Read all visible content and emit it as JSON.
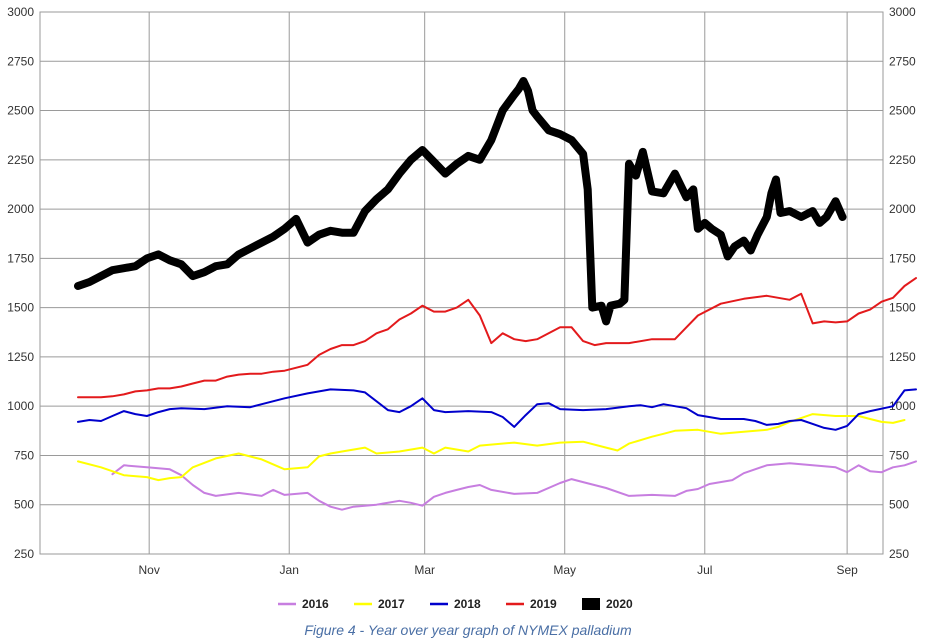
{
  "chart_data": {
    "type": "line",
    "title": "",
    "xlabel": "",
    "ylabel": "",
    "ylim": [
      250,
      3000
    ],
    "y_ticks": [
      250,
      500,
      750,
      1000,
      1250,
      1500,
      1750,
      2000,
      2250,
      2500,
      2750,
      3000
    ],
    "x_ticks": [
      {
        "label": "Nov",
        "day": 31
      },
      {
        "label": "Jan",
        "day": 92
      },
      {
        "label": "Mar",
        "day": 151
      },
      {
        "label": "May",
        "day": 212
      },
      {
        "label": "Jul",
        "day": 273
      },
      {
        "label": "Sep",
        "day": 335
      }
    ],
    "x_range_days": [
      0,
      365
    ],
    "grid": true,
    "legend_placement": "bottom",
    "series": [
      {
        "name": "2016",
        "color": "#c77ee0",
        "width": 2,
        "points": [
          [
            15,
            655
          ],
          [
            20,
            700
          ],
          [
            30,
            690
          ],
          [
            40,
            680
          ],
          [
            45,
            650
          ],
          [
            50,
            600
          ],
          [
            55,
            560
          ],
          [
            60,
            545
          ],
          [
            70,
            560
          ],
          [
            80,
            545
          ],
          [
            85,
            575
          ],
          [
            90,
            550
          ],
          [
            100,
            560
          ],
          [
            105,
            520
          ],
          [
            110,
            490
          ],
          [
            115,
            475
          ],
          [
            120,
            490
          ],
          [
            130,
            500
          ],
          [
            140,
            520
          ],
          [
            145,
            510
          ],
          [
            150,
            495
          ],
          [
            155,
            540
          ],
          [
            160,
            560
          ],
          [
            165,
            575
          ],
          [
            170,
            590
          ],
          [
            175,
            600
          ],
          [
            180,
            575
          ],
          [
            190,
            555
          ],
          [
            200,
            560
          ],
          [
            210,
            610
          ],
          [
            215,
            630
          ],
          [
            220,
            615
          ],
          [
            230,
            585
          ],
          [
            240,
            545
          ],
          [
            250,
            550
          ],
          [
            260,
            545
          ],
          [
            265,
            570
          ],
          [
            270,
            580
          ],
          [
            275,
            605
          ],
          [
            285,
            625
          ],
          [
            290,
            660
          ],
          [
            300,
            700
          ],
          [
            310,
            710
          ],
          [
            320,
            700
          ],
          [
            330,
            690
          ],
          [
            335,
            665
          ],
          [
            340,
            700
          ],
          [
            345,
            670
          ],
          [
            350,
            665
          ],
          [
            355,
            690
          ],
          [
            360,
            700
          ],
          [
            365,
            720
          ]
        ]
      },
      {
        "name": "2017",
        "color": "#ffff00",
        "width": 2,
        "points": [
          [
            0,
            720
          ],
          [
            10,
            690
          ],
          [
            20,
            650
          ],
          [
            30,
            640
          ],
          [
            35,
            625
          ],
          [
            40,
            635
          ],
          [
            45,
            640
          ],
          [
            50,
            690
          ],
          [
            60,
            735
          ],
          [
            70,
            760
          ],
          [
            80,
            730
          ],
          [
            90,
            680
          ],
          [
            100,
            690
          ],
          [
            105,
            745
          ],
          [
            110,
            760
          ],
          [
            115,
            770
          ],
          [
            125,
            790
          ],
          [
            130,
            760
          ],
          [
            140,
            770
          ],
          [
            150,
            790
          ],
          [
            155,
            760
          ],
          [
            160,
            790
          ],
          [
            170,
            770
          ],
          [
            175,
            800
          ],
          [
            190,
            815
          ],
          [
            200,
            800
          ],
          [
            210,
            815
          ],
          [
            220,
            820
          ],
          [
            230,
            790
          ],
          [
            235,
            775
          ],
          [
            240,
            810
          ],
          [
            250,
            845
          ],
          [
            255,
            860
          ],
          [
            260,
            875
          ],
          [
            270,
            880
          ],
          [
            280,
            860
          ],
          [
            290,
            870
          ],
          [
            300,
            880
          ],
          [
            305,
            895
          ],
          [
            310,
            920
          ],
          [
            320,
            960
          ],
          [
            330,
            950
          ],
          [
            340,
            950
          ],
          [
            345,
            935
          ],
          [
            350,
            920
          ],
          [
            355,
            915
          ],
          [
            360,
            930
          ]
        ]
      },
      {
        "name": "2018",
        "color": "#0000cc",
        "width": 2,
        "points": [
          [
            0,
            920
          ],
          [
            5,
            930
          ],
          [
            10,
            925
          ],
          [
            15,
            950
          ],
          [
            20,
            975
          ],
          [
            25,
            960
          ],
          [
            30,
            950
          ],
          [
            35,
            970
          ],
          [
            40,
            985
          ],
          [
            45,
            990
          ],
          [
            55,
            985
          ],
          [
            65,
            1000
          ],
          [
            75,
            995
          ],
          [
            80,
            1010
          ],
          [
            90,
            1040
          ],
          [
            100,
            1065
          ],
          [
            110,
            1085
          ],
          [
            120,
            1080
          ],
          [
            125,
            1070
          ],
          [
            135,
            980
          ],
          [
            140,
            970
          ],
          [
            145,
            1000
          ],
          [
            150,
            1040
          ],
          [
            155,
            980
          ],
          [
            160,
            970
          ],
          [
            170,
            975
          ],
          [
            180,
            970
          ],
          [
            185,
            945
          ],
          [
            190,
            895
          ],
          [
            195,
            955
          ],
          [
            200,
            1010
          ],
          [
            205,
            1015
          ],
          [
            210,
            985
          ],
          [
            220,
            980
          ],
          [
            230,
            985
          ],
          [
            240,
            1000
          ],
          [
            245,
            1005
          ],
          [
            250,
            995
          ],
          [
            255,
            1010
          ],
          [
            260,
            1000
          ],
          [
            265,
            990
          ],
          [
            270,
            955
          ],
          [
            280,
            935
          ],
          [
            290,
            935
          ],
          [
            295,
            925
          ],
          [
            300,
            905
          ],
          [
            305,
            910
          ],
          [
            310,
            925
          ],
          [
            315,
            930
          ],
          [
            320,
            910
          ],
          [
            325,
            890
          ],
          [
            330,
            880
          ],
          [
            335,
            900
          ],
          [
            340,
            960
          ],
          [
            345,
            975
          ],
          [
            355,
            1000
          ],
          [
            360,
            1080
          ],
          [
            365,
            1085
          ]
        ]
      },
      {
        "name": "2019",
        "color": "#e31a1c",
        "width": 2,
        "points": [
          [
            0,
            1045
          ],
          [
            10,
            1045
          ],
          [
            15,
            1050
          ],
          [
            20,
            1060
          ],
          [
            25,
            1075
          ],
          [
            30,
            1080
          ],
          [
            35,
            1090
          ],
          [
            40,
            1090
          ],
          [
            45,
            1100
          ],
          [
            50,
            1115
          ],
          [
            55,
            1130
          ],
          [
            60,
            1130
          ],
          [
            65,
            1150
          ],
          [
            70,
            1160
          ],
          [
            75,
            1165
          ],
          [
            80,
            1165
          ],
          [
            85,
            1175
          ],
          [
            90,
            1180
          ],
          [
            100,
            1210
          ],
          [
            105,
            1260
          ],
          [
            110,
            1290
          ],
          [
            115,
            1310
          ],
          [
            120,
            1310
          ],
          [
            125,
            1330
          ],
          [
            130,
            1370
          ],
          [
            135,
            1390
          ],
          [
            140,
            1440
          ],
          [
            145,
            1470
          ],
          [
            150,
            1510
          ],
          [
            155,
            1480
          ],
          [
            160,
            1480
          ],
          [
            165,
            1500
          ],
          [
            170,
            1540
          ],
          [
            175,
            1460
          ],
          [
            180,
            1320
          ],
          [
            185,
            1370
          ],
          [
            190,
            1340
          ],
          [
            195,
            1330
          ],
          [
            200,
            1340
          ],
          [
            210,
            1400
          ],
          [
            215,
            1400
          ],
          [
            220,
            1330
          ],
          [
            225,
            1310
          ],
          [
            230,
            1320
          ],
          [
            240,
            1320
          ],
          [
            250,
            1340
          ],
          [
            260,
            1340
          ],
          [
            265,
            1400
          ],
          [
            270,
            1460
          ],
          [
            280,
            1520
          ],
          [
            290,
            1545
          ],
          [
            300,
            1560
          ],
          [
            310,
            1540
          ],
          [
            315,
            1570
          ],
          [
            320,
            1420
          ],
          [
            325,
            1430
          ],
          [
            330,
            1425
          ],
          [
            335,
            1430
          ],
          [
            340,
            1470
          ],
          [
            345,
            1490
          ],
          [
            350,
            1530
          ],
          [
            355,
            1550
          ],
          [
            360,
            1610
          ],
          [
            365,
            1650
          ]
        ]
      },
      {
        "name": "2020",
        "color": "#000000",
        "width": 8,
        "points": [
          [
            0,
            1610
          ],
          [
            5,
            1630
          ],
          [
            10,
            1660
          ],
          [
            15,
            1690
          ],
          [
            20,
            1700
          ],
          [
            25,
            1710
          ],
          [
            30,
            1750
          ],
          [
            35,
            1770
          ],
          [
            40,
            1740
          ],
          [
            45,
            1720
          ],
          [
            50,
            1660
          ],
          [
            55,
            1680
          ],
          [
            60,
            1710
          ],
          [
            65,
            1720
          ],
          [
            70,
            1770
          ],
          [
            75,
            1800
          ],
          [
            80,
            1830
          ],
          [
            85,
            1860
          ],
          [
            90,
            1900
          ],
          [
            95,
            1950
          ],
          [
            100,
            1830
          ],
          [
            105,
            1870
          ],
          [
            110,
            1890
          ],
          [
            115,
            1880
          ],
          [
            120,
            1880
          ],
          [
            125,
            1990
          ],
          [
            130,
            2050
          ],
          [
            135,
            2100
          ],
          [
            140,
            2180
          ],
          [
            145,
            2250
          ],
          [
            150,
            2300
          ],
          [
            155,
            2240
          ],
          [
            160,
            2180
          ],
          [
            165,
            2230
          ],
          [
            170,
            2270
          ],
          [
            175,
            2250
          ],
          [
            180,
            2350
          ],
          [
            185,
            2500
          ],
          [
            190,
            2580
          ],
          [
            192,
            2610
          ],
          [
            194,
            2650
          ],
          [
            196,
            2600
          ],
          [
            198,
            2500
          ],
          [
            200,
            2470
          ],
          [
            205,
            2400
          ],
          [
            210,
            2380
          ],
          [
            215,
            2350
          ],
          [
            220,
            2280
          ],
          [
            222,
            2100
          ],
          [
            224,
            1500
          ],
          [
            228,
            1510
          ],
          [
            230,
            1430
          ],
          [
            232,
            1510
          ],
          [
            236,
            1520
          ],
          [
            238,
            1540
          ],
          [
            240,
            2230
          ],
          [
            243,
            2170
          ],
          [
            246,
            2290
          ],
          [
            250,
            2090
          ],
          [
            255,
            2080
          ],
          [
            260,
            2180
          ],
          [
            265,
            2060
          ],
          [
            268,
            2100
          ],
          [
            270,
            1900
          ],
          [
            273,
            1930
          ],
          [
            276,
            1900
          ],
          [
            280,
            1870
          ],
          [
            283,
            1760
          ],
          [
            286,
            1810
          ],
          [
            290,
            1840
          ],
          [
            293,
            1790
          ],
          [
            296,
            1870
          ],
          [
            300,
            1960
          ],
          [
            302,
            2080
          ],
          [
            304,
            2150
          ],
          [
            306,
            1980
          ],
          [
            310,
            1990
          ],
          [
            315,
            1960
          ],
          [
            320,
            1990
          ],
          [
            323,
            1930
          ],
          [
            326,
            1960
          ],
          [
            330,
            2040
          ],
          [
            333,
            1960
          ]
        ]
      }
    ]
  },
  "legend": [
    {
      "label": "2016",
      "color": "#c77ee0"
    },
    {
      "label": "2017",
      "color": "#ffff00"
    },
    {
      "label": "2018",
      "color": "#0000cc"
    },
    {
      "label": "2019",
      "color": "#e31a1c"
    },
    {
      "label": "2020",
      "color": "#000000"
    }
  ],
  "caption": "Figure 4 - Year over year graph of NYMEX palladium"
}
